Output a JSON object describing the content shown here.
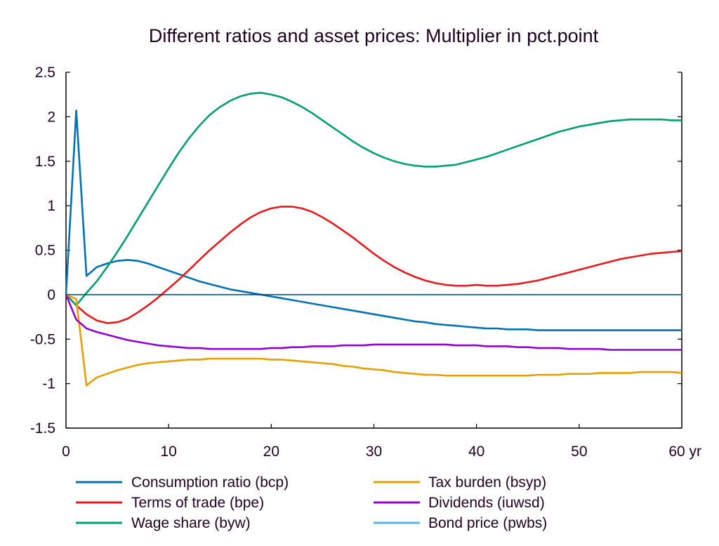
{
  "chart_data": {
    "type": "line",
    "title": "Different ratios and asset prices: Multiplier in pct.point",
    "xlabel": "",
    "ylabel": "",
    "xlim": [
      0,
      60
    ],
    "ylim": [
      -1.5,
      2.5
    ],
    "x_ticks": [
      0,
      10,
      20,
      30,
      40,
      50,
      60
    ],
    "x_tick_labels": [
      "0",
      "10",
      "20",
      "30",
      "40",
      "50",
      "60 yr"
    ],
    "y_ticks": [
      2.5,
      2,
      1.5,
      1,
      0.5,
      0,
      -0.5,
      -1,
      -1.5
    ],
    "y_tick_labels": [
      "2.5",
      "2",
      "1.5",
      "1",
      "0.5",
      "0",
      "-0.5",
      "-1",
      "-1.5"
    ],
    "grid": false,
    "legend_position": "bottom",
    "x": [
      0,
      1,
      2,
      3,
      4,
      5,
      6,
      7,
      8,
      9,
      10,
      11,
      12,
      13,
      14,
      15,
      16,
      17,
      18,
      19,
      20,
      21,
      22,
      23,
      24,
      25,
      26,
      27,
      28,
      29,
      30,
      31,
      32,
      33,
      34,
      35,
      36,
      37,
      38,
      39,
      40,
      41,
      42,
      43,
      44,
      45,
      46,
      47,
      48,
      49,
      50,
      51,
      52,
      53,
      54,
      55,
      56,
      57,
      58,
      59,
      60
    ],
    "series": [
      {
        "name": "Consumption ratio (bcp)",
        "color": "#0072b2",
        "values": [
          0,
          2.07,
          0.21,
          0.31,
          0.35,
          0.38,
          0.39,
          0.38,
          0.35,
          0.31,
          0.27,
          0.23,
          0.19,
          0.15,
          0.12,
          0.09,
          0.06,
          0.04,
          0.02,
          0.0,
          -0.02,
          -0.04,
          -0.06,
          -0.08,
          -0.1,
          -0.12,
          -0.14,
          -0.16,
          -0.18,
          -0.2,
          -0.22,
          -0.24,
          -0.26,
          -0.28,
          -0.3,
          -0.31,
          -0.33,
          -0.34,
          -0.35,
          -0.36,
          -0.37,
          -0.38,
          -0.38,
          -0.39,
          -0.39,
          -0.39,
          -0.4,
          -0.4,
          -0.4,
          -0.4,
          -0.4,
          -0.4,
          -0.4,
          -0.4,
          -0.4,
          -0.4,
          -0.4,
          -0.4,
          -0.4,
          -0.4,
          -0.4
        ]
      },
      {
        "name": "Terms of trade (bpe)",
        "color": "#e41a1c",
        "values": [
          0,
          -0.12,
          -0.22,
          -0.29,
          -0.32,
          -0.31,
          -0.27,
          -0.2,
          -0.12,
          -0.03,
          0.07,
          0.17,
          0.28,
          0.39,
          0.5,
          0.6,
          0.7,
          0.79,
          0.87,
          0.93,
          0.97,
          0.99,
          0.99,
          0.97,
          0.93,
          0.87,
          0.8,
          0.72,
          0.64,
          0.55,
          0.46,
          0.38,
          0.31,
          0.25,
          0.2,
          0.16,
          0.13,
          0.11,
          0.1,
          0.1,
          0.11,
          0.1,
          0.1,
          0.11,
          0.12,
          0.14,
          0.16,
          0.19,
          0.22,
          0.25,
          0.28,
          0.31,
          0.34,
          0.37,
          0.4,
          0.42,
          0.44,
          0.46,
          0.47,
          0.48,
          0.49
        ]
      },
      {
        "name": "Wage share (byw)",
        "color": "#009e73",
        "values": [
          0,
          -0.12,
          0.02,
          0.15,
          0.31,
          0.48,
          0.66,
          0.85,
          1.04,
          1.23,
          1.42,
          1.6,
          1.76,
          1.9,
          2.02,
          2.11,
          2.18,
          2.23,
          2.26,
          2.27,
          2.25,
          2.22,
          2.17,
          2.11,
          2.04,
          1.96,
          1.88,
          1.8,
          1.72,
          1.65,
          1.59,
          1.54,
          1.5,
          1.47,
          1.45,
          1.44,
          1.44,
          1.45,
          1.46,
          1.49,
          1.52,
          1.55,
          1.59,
          1.63,
          1.67,
          1.71,
          1.75,
          1.79,
          1.83,
          1.86,
          1.89,
          1.91,
          1.93,
          1.95,
          1.96,
          1.97,
          1.97,
          1.97,
          1.97,
          1.96,
          1.96
        ]
      },
      {
        "name": "Tax burden (bsyp)",
        "color": "#e69f00",
        "values": [
          0,
          -0.05,
          -1.02,
          -0.93,
          -0.89,
          -0.85,
          -0.82,
          -0.79,
          -0.77,
          -0.76,
          -0.75,
          -0.74,
          -0.73,
          -0.73,
          -0.72,
          -0.72,
          -0.72,
          -0.72,
          -0.72,
          -0.72,
          -0.73,
          -0.73,
          -0.74,
          -0.75,
          -0.76,
          -0.77,
          -0.78,
          -0.8,
          -0.81,
          -0.83,
          -0.84,
          -0.85,
          -0.87,
          -0.88,
          -0.89,
          -0.9,
          -0.9,
          -0.91,
          -0.91,
          -0.91,
          -0.91,
          -0.91,
          -0.91,
          -0.91,
          -0.91,
          -0.91,
          -0.9,
          -0.9,
          -0.9,
          -0.89,
          -0.89,
          -0.89,
          -0.88,
          -0.88,
          -0.88,
          -0.88,
          -0.87,
          -0.87,
          -0.87,
          -0.87,
          -0.88
        ]
      },
      {
        "name": "Dividends (iuwsd)",
        "color": "#9400d3",
        "values": [
          0,
          -0.28,
          -0.38,
          -0.42,
          -0.45,
          -0.48,
          -0.51,
          -0.53,
          -0.55,
          -0.57,
          -0.58,
          -0.59,
          -0.6,
          -0.6,
          -0.61,
          -0.61,
          -0.61,
          -0.61,
          -0.61,
          -0.61,
          -0.6,
          -0.6,
          -0.59,
          -0.59,
          -0.58,
          -0.58,
          -0.58,
          -0.57,
          -0.57,
          -0.57,
          -0.56,
          -0.56,
          -0.56,
          -0.56,
          -0.56,
          -0.56,
          -0.56,
          -0.56,
          -0.57,
          -0.57,
          -0.57,
          -0.58,
          -0.58,
          -0.58,
          -0.59,
          -0.59,
          -0.6,
          -0.6,
          -0.6,
          -0.61,
          -0.61,
          -0.61,
          -0.61,
          -0.62,
          -0.62,
          -0.62,
          -0.62,
          -0.62,
          -0.62,
          -0.62,
          -0.62
        ]
      },
      {
        "name": "Bond price (pwbs)",
        "color": "#56b4e9",
        "values": [
          0,
          0,
          0,
          0,
          0,
          0,
          0,
          0,
          0,
          0,
          0,
          0,
          0,
          0,
          0,
          0,
          0,
          0,
          0,
          0,
          0,
          0,
          0,
          0,
          0,
          0,
          0,
          0,
          0,
          0,
          0,
          0,
          0,
          0,
          0,
          0,
          0,
          0,
          0,
          0,
          0,
          0,
          0,
          0,
          0,
          0,
          0,
          0,
          0,
          0,
          0,
          0,
          0,
          0,
          0,
          0,
          0,
          0,
          0,
          0,
          0
        ]
      }
    ]
  }
}
